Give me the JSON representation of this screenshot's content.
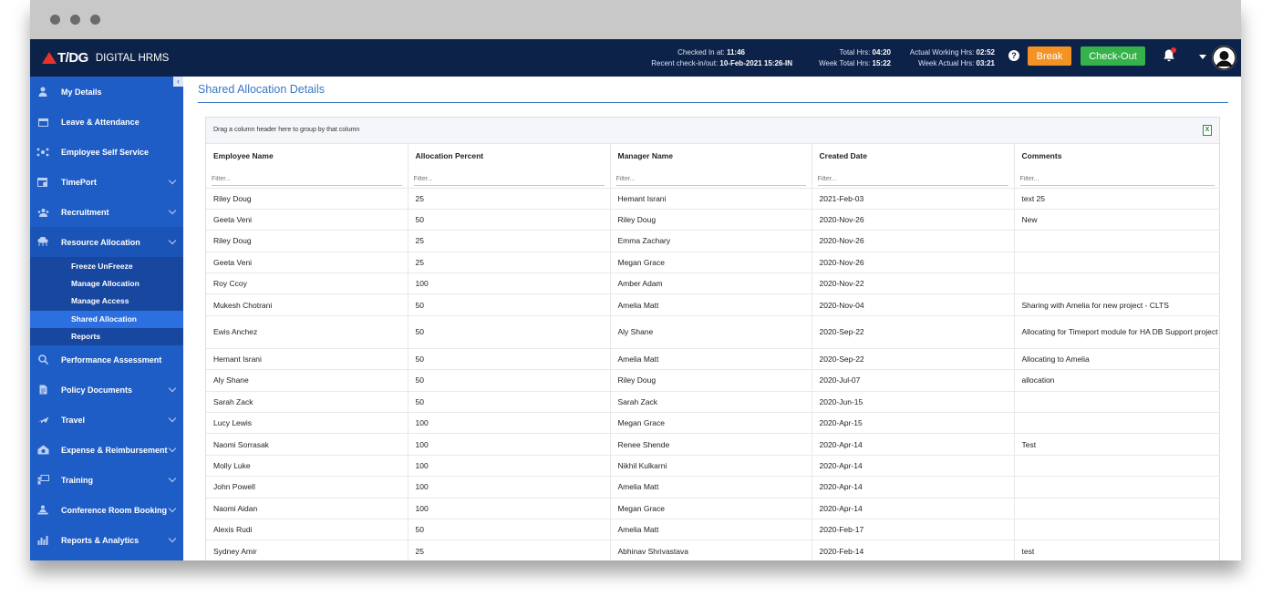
{
  "app": {
    "brand": "T/DG",
    "product": "DIGITAL HRMS"
  },
  "header": {
    "checked_in_label": "Checked In at:",
    "checked_in_value": "11:46",
    "recent_label": "Recent check-in/out:",
    "recent_value": "10-Feb-2021 15:26-IN",
    "total_hrs_label": "Total Hrs:",
    "total_hrs_value": "04:20",
    "week_total_label": "Week Total Hrs:",
    "week_total_value": "15:22",
    "actual_working_label": "Actual Working Hrs:",
    "actual_working_value": "02:52",
    "week_actual_label": "Week Actual Hrs:",
    "week_actual_value": "03:21",
    "break_label": "Break",
    "checkout_label": "Check-Out",
    "help_glyph": "?"
  },
  "sidebar": {
    "collapse_glyph": "‹",
    "items": [
      {
        "label": "My Details",
        "icon": "person-icon"
      },
      {
        "label": "Leave & Attendance",
        "icon": "calendar-icon"
      },
      {
        "label": "Employee Self Service",
        "icon": "network-icon"
      },
      {
        "label": "TimePort",
        "icon": "calendar-clock-icon"
      },
      {
        "label": "Recruitment",
        "icon": "people-icon"
      },
      {
        "label": "Resource Allocation",
        "icon": "cloud-network-icon"
      },
      {
        "label": "Performance Assessment",
        "icon": "search-chart-icon"
      },
      {
        "label": "Policy Documents",
        "icon": "document-icon"
      },
      {
        "label": "Travel",
        "icon": "airplane-icon"
      },
      {
        "label": "Expense & Reimbursement",
        "icon": "money-icon"
      },
      {
        "label": "Training",
        "icon": "presentation-icon"
      },
      {
        "label": "Conference Room Booking",
        "icon": "meeting-icon"
      },
      {
        "label": "Reports & Analytics",
        "icon": "analytics-icon"
      }
    ],
    "submenu": [
      "Freeze UnFreeze",
      "Manage Allocation",
      "Manage Access",
      "Shared Allocation",
      "Reports"
    ]
  },
  "page": {
    "title": "Shared Allocation Details",
    "group_hint": "Drag a column header here to group by that column",
    "excel_glyph": "X",
    "filter_placeholder": "Filter..."
  },
  "table": {
    "columns": [
      "Employee Name",
      "Allocation Percent",
      "Manager Name",
      "Created Date",
      "Comments"
    ],
    "rows": [
      [
        "Riley Doug",
        "25",
        "Hemant Israni",
        "2021-Feb-03",
        "text 25"
      ],
      [
        "Geeta Veni",
        "50",
        "Riley Doug",
        "2020-Nov-26",
        "New"
      ],
      [
        "Riley Doug",
        "25",
        "Emma Zachary",
        "2020-Nov-26",
        ""
      ],
      [
        "Geeta Veni",
        "25",
        "Megan Grace",
        "2020-Nov-26",
        ""
      ],
      [
        "Roy Ccoy",
        "100",
        "Amber Adam",
        "2020-Nov-22",
        ""
      ],
      [
        "Mukesh Chotrani",
        "50",
        "Amelia Matt",
        "2020-Nov-04",
        "Sharing with Amelia for new project - CLTS"
      ],
      [
        "Ewis Anchez",
        "50",
        "Aly Shane",
        "2020-Sep-22",
        "Allocating for Timeport module for HA DB Support project"
      ],
      [
        "Hemant Israni",
        "50",
        "Amelia Matt",
        "2020-Sep-22",
        "Allocating to Amelia"
      ],
      [
        "Aly Shane",
        "50",
        "Riley Doug",
        "2020-Jul-07",
        "allocation"
      ],
      [
        "Sarah Zack",
        "50",
        "Sarah Zack",
        "2020-Jun-15",
        ""
      ],
      [
        "Lucy Lewis",
        "100",
        "Megan Grace",
        "2020-Apr-15",
        ""
      ],
      [
        "Naomi Sorrasak",
        "100",
        "Renee Shende",
        "2020-Apr-14",
        "Test"
      ],
      [
        "Molly Luke",
        "100",
        "Nikhil Kulkarni",
        "2020-Apr-14",
        ""
      ],
      [
        "John Powell",
        "100",
        "Amelia Matt",
        "2020-Apr-14",
        ""
      ],
      [
        "Naomi Aidan",
        "100",
        "Megan Grace",
        "2020-Apr-14",
        ""
      ],
      [
        "Alexis Rudi",
        "50",
        "Amelia Matt",
        "2020-Feb-17",
        ""
      ],
      [
        "Sydney Amir",
        "25",
        "Abhinav Shrivastava",
        "2020-Feb-14",
        "test"
      ]
    ]
  },
  "colors": {
    "topbar": "#0d2248",
    "sidebar": "#1f5dc6",
    "break": "#f49323",
    "checkout": "#35b34a",
    "accent": "#3a78c6"
  }
}
